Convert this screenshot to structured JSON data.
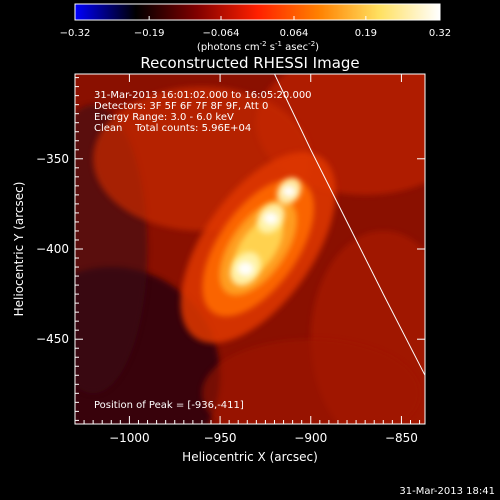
{
  "chart_data": {
    "type": "heatmap",
    "title": "Reconstructed RHESSI Image",
    "colorbar": {
      "ticks": [
        "-0.32",
        "-0.19",
        "-0.064",
        "0.064",
        "0.19",
        "0.32"
      ],
      "tick_values": [
        -0.32,
        -0.19,
        -0.064,
        0.064,
        0.19,
        0.32
      ],
      "label_prefix": "(photons cm",
      "label_exp1": "-2",
      "label_mid1": " s",
      "label_exp2": "-1",
      "label_mid2": " asec",
      "label_exp3": "-2",
      "label_suffix": ")",
      "range": [
        -0.32,
        0.32
      ],
      "colormap": [
        "#0000ff",
        "#000000",
        "#800000",
        "#ff2000",
        "#ff8000",
        "#ffe060",
        "#ffffff"
      ]
    },
    "xlabel": "Heliocentric X (arcsec)",
    "ylabel": "Heliocentric Y (arcsec)",
    "xlim": [
      -1030,
      -837
    ],
    "ylim": [
      -497,
      -303
    ],
    "xticks": [
      -1000,
      -950,
      -900,
      -850
    ],
    "yticks": [
      -350,
      -400,
      -450
    ],
    "xtick_labels": [
      "−1000",
      "−950",
      "−900",
      "−850"
    ],
    "ytick_labels": [
      "−350",
      "−400",
      "−450"
    ],
    "annotations": [
      "31-Mar-2013 16:01:02.000 to 16:05:20.000",
      "Detectors: 3F 5F 6F 7F 8F 9F, Att 0",
      "Energy Range: 3.0 - 6.0 keV",
      "Clean    Total counts: 5.96E+04"
    ],
    "peak_label": "Position of Peak = [-936,-411]",
    "peak": [
      -936,
      -411
    ],
    "sources": [
      {
        "x": -936,
        "y": -411,
        "value": 0.32
      },
      {
        "x": -922,
        "y": -383,
        "value": 0.26
      },
      {
        "x": -912,
        "y": -368,
        "value": 0.2
      }
    ],
    "limb": [
      [
        -920,
        -303
      ],
      [
        -900,
        -345
      ],
      [
        -880,
        -385
      ],
      [
        -860,
        -425
      ],
      [
        -837,
        -470
      ]
    ],
    "timestamp": "31-Mar-2013 18:41"
  }
}
